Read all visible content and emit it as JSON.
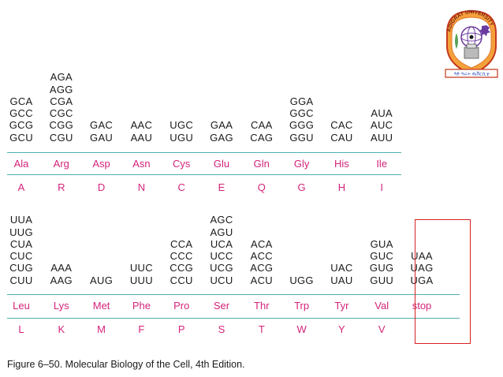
{
  "top_rows": [
    {
      "codons": [
        "GCA",
        "GCC",
        "GCG",
        "GCU"
      ],
      "aa3": "Ala",
      "aa1": "A"
    },
    {
      "codons": [
        "AGA",
        "AGG",
        "CGA",
        "CGC",
        "CGG",
        "CGU"
      ],
      "aa3": "Arg",
      "aa1": "R"
    },
    {
      "codons": [
        "GAC",
        "GAU"
      ],
      "aa3": "Asp",
      "aa1": "D"
    },
    {
      "codons": [
        "AAC",
        "AAU"
      ],
      "aa3": "Asn",
      "aa1": "N"
    },
    {
      "codons": [
        "UGC",
        "UGU"
      ],
      "aa3": "Cys",
      "aa1": "C"
    },
    {
      "codons": [
        "GAA",
        "GAG"
      ],
      "aa3": "Glu",
      "aa1": "E"
    },
    {
      "codons": [
        "CAA",
        "CAG"
      ],
      "aa3": "Gln",
      "aa1": "Q"
    },
    {
      "codons": [
        "GGA",
        "GGC",
        "GGG",
        "GGU"
      ],
      "aa3": "Gly",
      "aa1": "G"
    },
    {
      "codons": [
        "CAC",
        "CAU"
      ],
      "aa3": "His",
      "aa1": "H"
    },
    {
      "codons": [
        "AUA",
        "AUC",
        "AUU"
      ],
      "aa3": "Ile",
      "aa1": "I"
    }
  ],
  "bottom_rows": [
    {
      "codons": [
        "UUA",
        "UUG",
        "CUA",
        "CUC",
        "CUG",
        "CUU"
      ],
      "aa3": "Leu",
      "aa1": "L"
    },
    {
      "codons": [
        "AAA",
        "AAG"
      ],
      "aa3": "Lys",
      "aa1": "K"
    },
    {
      "codons": [
        "AUG"
      ],
      "aa3": "Met",
      "aa1": "M"
    },
    {
      "codons": [
        "UUC",
        "UUU"
      ],
      "aa3": "Phe",
      "aa1": "F"
    },
    {
      "codons": [
        "CCA",
        "CCC",
        "CCG",
        "CCU"
      ],
      "aa3": "Pro",
      "aa1": "P"
    },
    {
      "codons": [
        "AGC",
        "AGU",
        "UCA",
        "UCC",
        "UCG",
        "UCU"
      ],
      "aa3": "Ser",
      "aa1": "S"
    },
    {
      "codons": [
        "ACA",
        "ACC",
        "ACG",
        "ACU"
      ],
      "aa3": "Thr",
      "aa1": "T"
    },
    {
      "codons": [
        "UGG"
      ],
      "aa3": "Trp",
      "aa1": "W"
    },
    {
      "codons": [
        "UAC",
        "UAU"
      ],
      "aa3": "Tyr",
      "aa1": "Y"
    },
    {
      "codons": [
        "GUA",
        "GUC",
        "GUG",
        "GUU"
      ],
      "aa3": "Val",
      "aa1": "V"
    },
    {
      "codons": [
        "UAA",
        "UAG",
        "UGA"
      ],
      "aa3": "stop",
      "aa1": ""
    }
  ],
  "caption": "Figure 6–50. Molecular Biology of the Cell, 4th Edition.",
  "logo": {
    "text_top": "ADIGRAT UNIVERSITY",
    "text_ribbon": "ዓድ ግራት ዩኒቨርሲቲ"
  },
  "colors": {
    "aa_text": "#d4237a",
    "rule": "#4fb0b0",
    "stop_box": "#d62020"
  }
}
